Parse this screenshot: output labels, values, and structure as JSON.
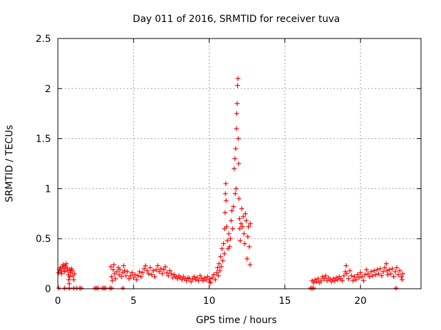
{
  "chart_data": {
    "type": "scatter",
    "title": "Day 011 of 2016, SRMTID for receiver tuva",
    "xlabel": "GPS time / hours",
    "ylabel": "SRMTID / TECUs",
    "xlim": [
      0,
      24
    ],
    "ylim": [
      0,
      2.5
    ],
    "x_ticks": [
      0,
      5,
      10,
      15,
      20
    ],
    "x_tick_labels": [
      "0",
      "5",
      "10",
      "15",
      "20"
    ],
    "y_ticks": [
      0,
      0.5,
      1,
      1.5,
      2,
      2.5
    ],
    "y_tick_labels": [
      "0",
      "0.5",
      "1",
      "1.5",
      "2",
      "2.5"
    ],
    "grid": true,
    "marker": "+",
    "color": "#ff0000",
    "gaps": [
      {
        "start": 0.9,
        "end": 3.45
      },
      {
        "start": 12.8,
        "end": 16.75
      },
      {
        "start": 22.8,
        "end": 24
      }
    ],
    "zero_markers": [
      [
        0.05,
        0
      ],
      [
        0.45,
        0
      ],
      [
        0.75,
        0
      ],
      [
        1.05,
        0
      ],
      [
        1.25,
        0
      ],
      [
        1.45,
        0
      ],
      [
        1.55,
        0
      ],
      [
        2.45,
        0
      ],
      [
        2.55,
        0
      ],
      [
        2.65,
        0
      ],
      [
        2.95,
        0
      ],
      [
        3.05,
        0
      ],
      [
        3.15,
        0
      ],
      [
        3.45,
        0
      ],
      [
        3.55,
        0
      ],
      [
        4.3,
        0
      ],
      [
        16.7,
        0
      ],
      [
        16.8,
        0
      ],
      [
        16.9,
        0
      ],
      [
        22.35,
        0
      ]
    ],
    "series": [
      {
        "name": "SRMTID",
        "points": [
          [
            0.05,
            0.16
          ],
          [
            0.1,
            0.19
          ],
          [
            0.15,
            0.21
          ],
          [
            0.2,
            0.18
          ],
          [
            0.25,
            0.15
          ],
          [
            0.3,
            0.22
          ],
          [
            0.35,
            0.24
          ],
          [
            0.4,
            0.2
          ],
          [
            0.45,
            0.17
          ],
          [
            0.5,
            0.23
          ],
          [
            0.55,
            0.25
          ],
          [
            0.6,
            0.21
          ],
          [
            0.65,
            0.18
          ],
          [
            0.7,
            0.14
          ],
          [
            0.72,
            0.09
          ],
          [
            0.75,
            0.05
          ],
          [
            0.78,
            0.12
          ],
          [
            0.8,
            0.19
          ],
          [
            0.85,
            0.16
          ],
          [
            0.9,
            0.2
          ],
          [
            0.95,
            0.18
          ],
          [
            1.0,
            0.13
          ],
          [
            1.05,
            0.09
          ],
          [
            1.1,
            0.15
          ],
          [
            3.5,
            0.22
          ],
          [
            3.55,
            0.12
          ],
          [
            3.6,
            0.08
          ],
          [
            3.65,
            0.19
          ],
          [
            3.7,
            0.24
          ],
          [
            3.75,
            0.15
          ],
          [
            3.8,
            0.1
          ],
          [
            3.9,
            0.17
          ],
          [
            4.0,
            0.21
          ],
          [
            4.05,
            0.14
          ],
          [
            4.1,
            0.19
          ],
          [
            4.2,
            0.12
          ],
          [
            4.3,
            0.16
          ],
          [
            4.35,
            0.23
          ],
          [
            4.4,
            0.18
          ],
          [
            4.5,
            0.13
          ],
          [
            4.6,
            0.17
          ],
          [
            4.7,
            0.1
          ],
          [
            4.8,
            0.13
          ],
          [
            4.9,
            0.16
          ],
          [
            5.0,
            0.11
          ],
          [
            5.1,
            0.14
          ],
          [
            5.2,
            0.09
          ],
          [
            5.3,
            0.13
          ],
          [
            5.4,
            0.17
          ],
          [
            5.5,
            0.12
          ],
          [
            5.6,
            0.16
          ],
          [
            5.7,
            0.2
          ],
          [
            5.8,
            0.23
          ],
          [
            5.9,
            0.18
          ],
          [
            6.0,
            0.15
          ],
          [
            6.1,
            0.21
          ],
          [
            6.2,
            0.14
          ],
          [
            6.3,
            0.18
          ],
          [
            6.4,
            0.12
          ],
          [
            6.5,
            0.19
          ],
          [
            6.6,
            0.23
          ],
          [
            6.7,
            0.17
          ],
          [
            6.8,
            0.2
          ],
          [
            6.9,
            0.15
          ],
          [
            7.0,
            0.19
          ],
          [
            7.1,
            0.22
          ],
          [
            7.2,
            0.16
          ],
          [
            7.3,
            0.13
          ],
          [
            7.4,
            0.18
          ],
          [
            7.5,
            0.15
          ],
          [
            7.6,
            0.11
          ],
          [
            7.7,
            0.14
          ],
          [
            7.8,
            0.12
          ],
          [
            7.9,
            0.1
          ],
          [
            8.0,
            0.13
          ],
          [
            8.1,
            0.11
          ],
          [
            8.2,
            0.09
          ],
          [
            8.3,
            0.12
          ],
          [
            8.4,
            0.1
          ],
          [
            8.5,
            0.08
          ],
          [
            8.6,
            0.11
          ],
          [
            8.7,
            0.1
          ],
          [
            8.8,
            0.07
          ],
          [
            8.9,
            0.1
          ],
          [
            9.0,
            0.12
          ],
          [
            9.1,
            0.09
          ],
          [
            9.2,
            0.11
          ],
          [
            9.3,
            0.08
          ],
          [
            9.4,
            0.13
          ],
          [
            9.5,
            0.1
          ],
          [
            9.6,
            0.08
          ],
          [
            9.7,
            0.11
          ],
          [
            9.8,
            0.09
          ],
          [
            9.9,
            0.12
          ],
          [
            10.0,
            0.07
          ],
          [
            10.05,
            0.1
          ],
          [
            10.1,
            0.06
          ],
          [
            10.2,
            0.11
          ],
          [
            10.3,
            0.14
          ],
          [
            10.4,
            0.09
          ],
          [
            10.5,
            0.16
          ],
          [
            10.55,
            0.21
          ],
          [
            10.6,
            0.13
          ],
          [
            10.65,
            0.25
          ],
          [
            10.7,
            0.18
          ],
          [
            10.75,
            0.32
          ],
          [
            10.8,
            0.22
          ],
          [
            10.85,
            0.4
          ],
          [
            10.9,
            0.28
          ],
          [
            10.95,
            0.45
          ],
          [
            11.0,
            0.35
          ],
          [
            11.02,
            0.6
          ],
          [
            11.05,
            0.76
          ],
          [
            11.07,
            0.95
          ],
          [
            11.1,
            1.05
          ],
          [
            11.12,
            0.88
          ],
          [
            11.15,
            0.62
          ],
          [
            11.2,
            0.48
          ],
          [
            11.25,
            0.4
          ],
          [
            11.3,
            0.55
          ],
          [
            11.35,
            0.42
          ],
          [
            11.4,
            0.5
          ],
          [
            11.45,
            0.68
          ],
          [
            11.5,
            0.78
          ],
          [
            11.55,
            0.6
          ],
          [
            11.6,
            0.82
          ],
          [
            11.65,
            1.2
          ],
          [
            11.7,
            1.3
          ],
          [
            11.72,
            0.95
          ],
          [
            11.75,
            1.4
          ],
          [
            11.78,
            1.0
          ],
          [
            11.8,
            1.6
          ],
          [
            11.82,
            1.75
          ],
          [
            11.85,
            1.85
          ],
          [
            11.87,
            2.03
          ],
          [
            11.9,
            2.1
          ],
          [
            11.92,
            1.5
          ],
          [
            11.95,
            1.25
          ],
          [
            11.97,
            0.9
          ],
          [
            12.0,
            0.7
          ],
          [
            12.02,
            0.6
          ],
          [
            12.05,
            0.48
          ],
          [
            12.1,
            0.65
          ],
          [
            12.15,
            0.8
          ],
          [
            12.2,
            0.62
          ],
          [
            12.25,
            0.72
          ],
          [
            12.3,
            0.55
          ],
          [
            12.35,
            0.45
          ],
          [
            12.4,
            0.75
          ],
          [
            12.45,
            0.68
          ],
          [
            12.5,
            0.3
          ],
          [
            12.55,
            0.52
          ],
          [
            12.6,
            0.62
          ],
          [
            12.65,
            0.42
          ],
          [
            12.7,
            0.24
          ],
          [
            12.72,
            0.65
          ],
          [
            16.8,
            0.08
          ],
          [
            16.9,
            0.06
          ],
          [
            17.0,
            0.09
          ],
          [
            17.1,
            0.07
          ],
          [
            17.2,
            0.1
          ],
          [
            17.3,
            0.06
          ],
          [
            17.4,
            0.08
          ],
          [
            17.5,
            0.12
          ],
          [
            17.6,
            0.1
          ],
          [
            17.7,
            0.13
          ],
          [
            17.8,
            0.08
          ],
          [
            17.9,
            0.11
          ],
          [
            18.0,
            0.09
          ],
          [
            18.1,
            0.07
          ],
          [
            18.2,
            0.1
          ],
          [
            18.3,
            0.08
          ],
          [
            18.4,
            0.11
          ],
          [
            18.5,
            0.09
          ],
          [
            18.6,
            0.12
          ],
          [
            18.7,
            0.1
          ],
          [
            18.8,
            0.08
          ],
          [
            18.9,
            0.13
          ],
          [
            19.0,
            0.17
          ],
          [
            19.05,
            0.23
          ],
          [
            19.1,
            0.15
          ],
          [
            19.2,
            0.1
          ],
          [
            19.3,
            0.18
          ],
          [
            19.4,
            0.13
          ],
          [
            19.5,
            0.08
          ],
          [
            19.6,
            0.12
          ],
          [
            19.7,
            0.09
          ],
          [
            19.8,
            0.14
          ],
          [
            19.9,
            0.11
          ],
          [
            20.0,
            0.16
          ],
          [
            20.1,
            0.12
          ],
          [
            20.2,
            0.08
          ],
          [
            20.3,
            0.14
          ],
          [
            20.4,
            0.19
          ],
          [
            20.5,
            0.15
          ],
          [
            20.6,
            0.12
          ],
          [
            20.7,
            0.17
          ],
          [
            20.8,
            0.13
          ],
          [
            20.9,
            0.18
          ],
          [
            21.0,
            0.14
          ],
          [
            21.1,
            0.19
          ],
          [
            21.2,
            0.15
          ],
          [
            21.3,
            0.2
          ],
          [
            21.4,
            0.13
          ],
          [
            21.5,
            0.17
          ],
          [
            21.6,
            0.21
          ],
          [
            21.7,
            0.25
          ],
          [
            21.75,
            0.18
          ],
          [
            21.8,
            0.14
          ],
          [
            21.9,
            0.19
          ],
          [
            22.0,
            0.15
          ],
          [
            22.1,
            0.2
          ],
          [
            22.2,
            0.12
          ],
          [
            22.3,
            0.17
          ],
          [
            22.4,
            0.21
          ],
          [
            22.5,
            0.14
          ],
          [
            22.6,
            0.18
          ],
          [
            22.7,
            0.12
          ],
          [
            22.75,
            0.09
          ],
          [
            22.8,
            0.15
          ]
        ]
      }
    ]
  }
}
